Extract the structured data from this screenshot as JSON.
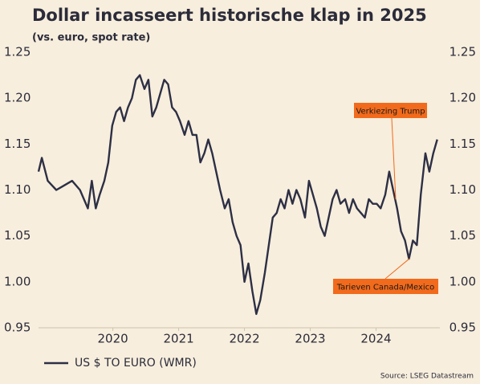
{
  "chart_data": {
    "type": "line",
    "title": "Dollar incasseert historische klap in 2025",
    "subtitle": "(vs. euro, spot rate)",
    "source": "Source: LSEG Datastream",
    "xlim": [
      2018.87,
      2024.97
    ],
    "xticks": [
      2020,
      2021,
      2022,
      2023,
      2024
    ],
    "ylim": [
      0.95,
      1.25
    ],
    "yticks": [
      0.95,
      {
        "value": 1,
        "label": "1.00"
      },
      1.05,
      {
        "value": 1.1,
        "label": "1.10"
      },
      1.15,
      {
        "value": 1.2,
        "label": "1.20"
      },
      1.25
    ],
    "right_axis": true,
    "grid": false,
    "legend": "bottom-left",
    "x": [
      2018.87,
      2018.92,
      2019.01,
      2019.14,
      2019.26,
      2019.38,
      2019.5,
      2019.62,
      2019.68,
      2019.74,
      2019.8,
      2019.87,
      2019.93,
      2019.99,
      2020.05,
      2020.11,
      2020.17,
      2020.23,
      2020.29,
      2020.35,
      2020.41,
      2020.48,
      2020.54,
      2020.6,
      2020.66,
      2020.72,
      2020.78,
      2020.84,
      2020.9,
      2020.96,
      2021.02,
      2021.09,
      2021.15,
      2021.21,
      2021.27,
      2021.33,
      2021.39,
      2021.45,
      2021.51,
      2021.57,
      2021.63,
      2021.7,
      2021.76,
      2021.82,
      2021.88,
      2021.94,
      2022.0,
      2022.06,
      2022.12,
      2022.18,
      2022.24,
      2022.31,
      2022.37,
      2022.43,
      2022.49,
      2022.55,
      2022.61,
      2022.67,
      2022.73,
      2022.79,
      2022.85,
      2022.92,
      2022.98,
      2023.04,
      2023.1,
      2023.16,
      2023.22,
      2023.28,
      2023.34,
      2023.4,
      2023.46,
      2023.53,
      2023.59,
      2023.65,
      2023.71,
      2023.77,
      2023.83,
      2023.89,
      2023.95,
      2024.01,
      2024.07,
      2024.14,
      2024.2,
      2024.26,
      2024.32,
      2024.38,
      2024.44,
      2024.5,
      2024.56,
      2024.62,
      2024.68,
      2024.75,
      2024.81,
      2024.87,
      2024.93
    ],
    "series": [
      {
        "name": "US $ TO EURO (WMR)",
        "color": "#2d2f45",
        "values": [
          1.12,
          1.135,
          1.11,
          1.1,
          1.105,
          1.11,
          1.1,
          1.08,
          1.11,
          1.08,
          1.095,
          1.11,
          1.13,
          1.17,
          1.185,
          1.19,
          1.175,
          1.19,
          1.2,
          1.22,
          1.225,
          1.21,
          1.22,
          1.18,
          1.19,
          1.205,
          1.22,
          1.215,
          1.19,
          1.185,
          1.175,
          1.16,
          1.175,
          1.16,
          1.16,
          1.13,
          1.14,
          1.155,
          1.14,
          1.12,
          1.1,
          1.08,
          1.09,
          1.065,
          1.05,
          1.04,
          1.0,
          1.02,
          0.99,
          0.965,
          0.98,
          1.01,
          1.04,
          1.07,
          1.075,
          1.09,
          1.08,
          1.1,
          1.085,
          1.1,
          1.09,
          1.07,
          1.11,
          1.095,
          1.08,
          1.06,
          1.05,
          1.07,
          1.09,
          1.1,
          1.085,
          1.09,
          1.075,
          1.09,
          1.08,
          1.075,
          1.07,
          1.09,
          1.085,
          1.085,
          1.08,
          1.095,
          1.12,
          1.1,
          1.08,
          1.055,
          1.045,
          1.025,
          1.045,
          1.04,
          1.095,
          1.14,
          1.12,
          1.14,
          1.155
        ]
      }
    ],
    "annotations": [
      "Verkiezing Trump",
      "Tarieven Canada/Mexico"
    ]
  }
}
